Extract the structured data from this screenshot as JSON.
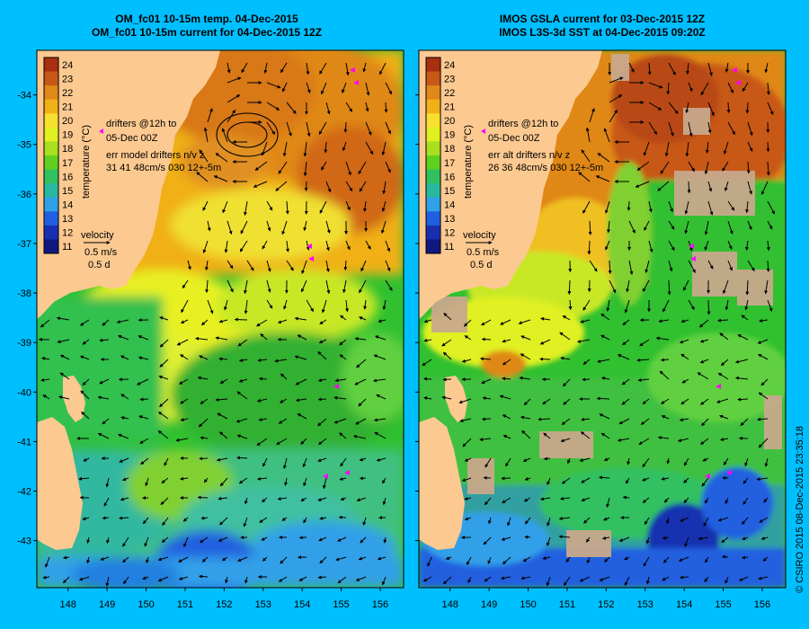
{
  "panels": [
    {
      "title_line1": "OM_fc01 10-15m temp. 04-Dec-2015",
      "title_line2": "OM_fc01 10-15m current for 04-Dec-2015 12Z",
      "drifters_line1": "drifters @12h to",
      "drifters_line2": "05-Dec 00Z",
      "err_line1": "err model drifters n/v z",
      "err_line2": "31 41 48cm/s 030 12+-5m",
      "velocity_label": "velocity",
      "velocity_scale": "0.5 m/s",
      "velocity_time": "0.5 d",
      "colorbar_label": "temperature (°C)"
    },
    {
      "title_line1": "IMOS GSLA current for 03-Dec-2015 12Z",
      "title_line2": "IMOS L3S-3d SST at 04-Dec-2015 09:20Z",
      "drifters_line1": "drifters @12h to",
      "drifters_line2": "05-Dec 00Z",
      "err_line1": "err alt drifters n/v z",
      "err_line2": "26 36 48cm/s 030 12+-5m",
      "velocity_label": "velocity",
      "velocity_scale": "0.5 m/s",
      "velocity_time": "0.5 d",
      "colorbar_label": "temperature (°C)"
    }
  ],
  "colorbar_ticks": [
    "24",
    "23",
    "22",
    "21",
    "20",
    "19",
    "18",
    "17",
    "16",
    "15",
    "14",
    "13",
    "12",
    "11"
  ],
  "colorbar_colors": [
    "#a83010",
    "#c85818",
    "#e08818",
    "#f0b018",
    "#f8e030",
    "#e0f020",
    "#a8e020",
    "#60d020",
    "#30c060",
    "#28b8a0",
    "#30a0e8",
    "#2060e0",
    "#1830b0",
    "#101880"
  ],
  "lat_ticks": [
    {
      "label": "-34",
      "value": -34
    },
    {
      "label": "-35",
      "value": -35
    },
    {
      "label": "-36",
      "value": -36
    },
    {
      "label": "-37",
      "value": -37
    },
    {
      "label": "-38",
      "value": -38
    },
    {
      "label": "-39",
      "value": -39
    },
    {
      "label": "-40",
      "value": -40
    },
    {
      "label": "-41",
      "value": -41
    },
    {
      "label": "-42",
      "value": -42
    },
    {
      "label": "-43",
      "value": -43
    }
  ],
  "lon_ticks": [
    {
      "label": "148",
      "value": 148
    },
    {
      "label": "149",
      "value": 149
    },
    {
      "label": "150",
      "value": 150
    },
    {
      "label": "151",
      "value": 151
    },
    {
      "label": "152",
      "value": 152
    },
    {
      "label": "153",
      "value": 153
    },
    {
      "label": "154",
      "value": 154
    },
    {
      "label": "155",
      "value": 155
    },
    {
      "label": "156",
      "value": 156
    }
  ],
  "map_extent": {
    "lon_min": 147.2,
    "lon_max": 156.6,
    "lat_max": -33.1,
    "lat_min": -43.95
  },
  "credit": "© CSIRO 2015   08-Dec-2015 23:35:18",
  "colors": {
    "frame_bg": "#00bfff",
    "land": "#fcc990",
    "warm_orange": "#e08818",
    "deep_orange": "#c85818",
    "yellow": "#f0f020",
    "green": "#30c030",
    "cyan": "#20c0c0",
    "blue": "#2080e0",
    "cloud_gray": "#c8a88c",
    "drifter": "#ff00ff"
  }
}
